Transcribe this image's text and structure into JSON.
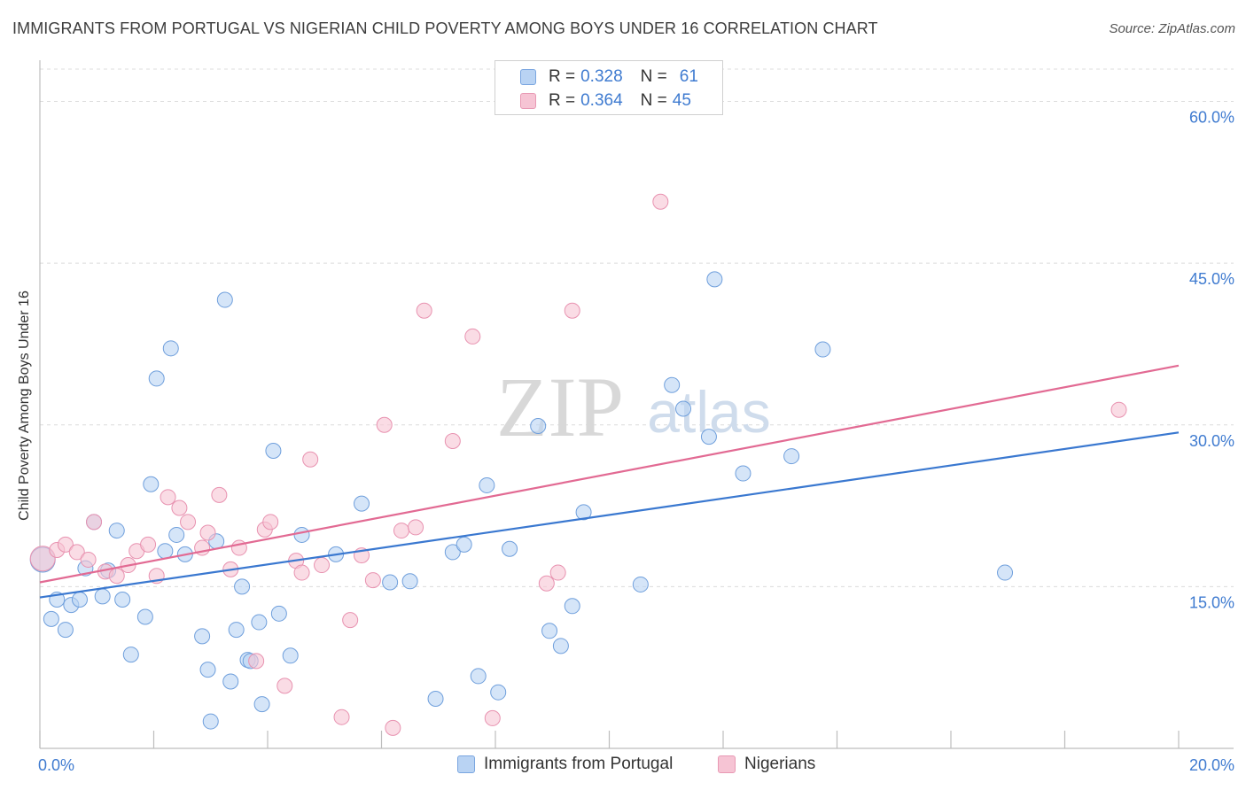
{
  "header": {
    "title": "IMMIGRANTS FROM PORTUGAL VS NIGERIAN CHILD POVERTY AMONG BOYS UNDER 16 CORRELATION CHART",
    "source": "Source: ZipAtlas.com"
  },
  "watermark": {
    "zip": "ZIP",
    "atlas": "atlas"
  },
  "colors": {
    "blue": "#3a78d0",
    "blue_fill": "#b9d3f3",
    "pink": "#e26a93",
    "pink_fill": "#f6c4d4",
    "accent_text": "#3f7bd0"
  },
  "legend": {
    "rows": [
      {
        "r_label": "R =",
        "r_value": "0.328",
        "n_label": "N =",
        "n_value": "61"
      },
      {
        "r_label": "R =",
        "r_value": "0.364",
        "n_label": "N =",
        "n_value": "45"
      }
    ]
  },
  "bottom_legend": {
    "series1": "Immigrants from Portugal",
    "series2": "Nigerians"
  },
  "chart_data": {
    "type": "scatter",
    "title": "IMMIGRANTS FROM PORTUGAL VS NIGERIAN CHILD POVERTY AMONG BOYS UNDER 16 CORRELATION CHART",
    "xlabel": "",
    "ylabel": "Child Poverty Among Boys Under 16",
    "xlim": [
      0,
      20
    ],
    "ylim": [
      0,
      63
    ],
    "x_tick_labels": [
      "0.0%",
      "20.0%"
    ],
    "y_ticks": [
      15,
      30,
      45,
      60
    ],
    "y_tick_labels": [
      "15.0%",
      "30.0%",
      "45.0%",
      "60.0%"
    ],
    "grid": true,
    "legend_position": "top-center",
    "series": [
      {
        "name": "Immigrants from Portugal",
        "color": "#3a78d0",
        "r": 0.328,
        "n": 61,
        "trend": {
          "x": [
            0,
            20
          ],
          "y": [
            14.0,
            29.3
          ]
        },
        "points": [
          [
            0.05,
            17.5
          ],
          [
            0.2,
            12.0
          ],
          [
            0.3,
            13.8
          ],
          [
            0.45,
            11.0
          ],
          [
            0.55,
            13.3
          ],
          [
            0.7,
            13.8
          ],
          [
            0.8,
            16.7
          ],
          [
            0.95,
            21.0
          ],
          [
            1.1,
            14.1
          ],
          [
            1.2,
            16.5
          ],
          [
            1.35,
            20.2
          ],
          [
            1.45,
            13.8
          ],
          [
            1.6,
            8.7
          ],
          [
            1.85,
            12.2
          ],
          [
            1.95,
            24.5
          ],
          [
            2.05,
            34.3
          ],
          [
            2.2,
            18.3
          ],
          [
            2.3,
            37.1
          ],
          [
            2.4,
            19.8
          ],
          [
            2.55,
            18.0
          ],
          [
            2.85,
            10.4
          ],
          [
            2.95,
            7.3
          ],
          [
            3.0,
            2.5
          ],
          [
            3.1,
            19.2
          ],
          [
            3.25,
            41.6
          ],
          [
            3.35,
            6.2
          ],
          [
            3.45,
            11.0
          ],
          [
            3.55,
            15.0
          ],
          [
            3.65,
            8.2
          ],
          [
            3.9,
            4.1
          ],
          [
            3.85,
            11.7
          ],
          [
            4.1,
            27.6
          ],
          [
            4.2,
            12.5
          ],
          [
            4.4,
            8.6
          ],
          [
            4.6,
            19.8
          ],
          [
            5.2,
            18.0
          ],
          [
            5.65,
            22.7
          ],
          [
            6.15,
            15.4
          ],
          [
            6.5,
            15.5
          ],
          [
            6.95,
            4.6
          ],
          [
            7.25,
            18.2
          ],
          [
            7.45,
            18.9
          ],
          [
            7.7,
            6.7
          ],
          [
            7.85,
            24.4
          ],
          [
            8.05,
            5.2
          ],
          [
            8.25,
            18.5
          ],
          [
            8.75,
            29.9
          ],
          [
            8.95,
            10.9
          ],
          [
            9.15,
            9.5
          ],
          [
            9.35,
            13.2
          ],
          [
            9.55,
            21.9
          ],
          [
            10.55,
            15.2
          ],
          [
            11.1,
            33.7
          ],
          [
            11.3,
            31.5
          ],
          [
            11.75,
            28.9
          ],
          [
            11.85,
            43.5
          ],
          [
            12.35,
            25.5
          ],
          [
            13.2,
            27.1
          ],
          [
            13.75,
            37.0
          ],
          [
            16.95,
            16.3
          ],
          [
            3.7,
            8.1
          ]
        ]
      },
      {
        "name": "Nigerians",
        "color": "#e26a93",
        "r": 0.364,
        "n": 45,
        "trend": {
          "x": [
            0,
            20
          ],
          "y": [
            15.4,
            35.5
          ]
        },
        "points": [
          [
            0.05,
            17.6
          ],
          [
            0.3,
            18.4
          ],
          [
            0.45,
            18.9
          ],
          [
            0.65,
            18.2
          ],
          [
            0.85,
            17.5
          ],
          [
            0.95,
            21.0
          ],
          [
            1.15,
            16.4
          ],
          [
            1.35,
            16.0
          ],
          [
            1.55,
            17.0
          ],
          [
            1.7,
            18.3
          ],
          [
            1.9,
            18.9
          ],
          [
            2.05,
            16.0
          ],
          [
            2.25,
            23.3
          ],
          [
            2.45,
            22.3
          ],
          [
            2.6,
            21.0
          ],
          [
            2.85,
            18.6
          ],
          [
            2.95,
            20.0
          ],
          [
            3.15,
            23.5
          ],
          [
            3.35,
            16.6
          ],
          [
            3.5,
            18.6
          ],
          [
            3.8,
            8.1
          ],
          [
            3.95,
            20.3
          ],
          [
            4.05,
            21.0
          ],
          [
            4.3,
            5.8
          ],
          [
            4.5,
            17.4
          ],
          [
            4.6,
            16.3
          ],
          [
            4.75,
            26.8
          ],
          [
            4.95,
            17.0
          ],
          [
            5.3,
            2.9
          ],
          [
            5.45,
            11.9
          ],
          [
            5.65,
            17.9
          ],
          [
            5.85,
            15.6
          ],
          [
            6.05,
            30.0
          ],
          [
            6.2,
            1.9
          ],
          [
            6.35,
            20.2
          ],
          [
            6.6,
            20.5
          ],
          [
            6.75,
            40.6
          ],
          [
            7.25,
            28.5
          ],
          [
            7.6,
            38.2
          ],
          [
            7.95,
            2.8
          ],
          [
            8.9,
            15.3
          ],
          [
            9.1,
            16.3
          ],
          [
            9.35,
            40.6
          ],
          [
            10.9,
            50.7
          ],
          [
            18.95,
            31.4
          ]
        ]
      }
    ]
  }
}
